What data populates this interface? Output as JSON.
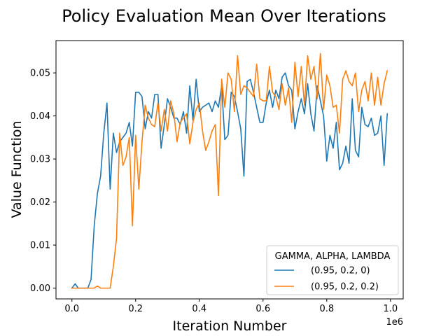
{
  "chart_data": {
    "type": "line",
    "title": "Policy Evaluation Mean Over Iterations",
    "xlabel": "Iteration Number",
    "ylabel": "Value Function",
    "x_offset_label": "1e6",
    "xlim": [
      -50000,
      1040000
    ],
    "ylim": [
      -0.0025,
      0.0575
    ],
    "x_ticks": [
      0,
      0.2,
      0.4,
      0.6,
      0.8,
      1.0
    ],
    "x_tick_labels": [
      "0.0",
      "0.2",
      "0.4",
      "0.6",
      "0.8",
      "1.0"
    ],
    "y_ticks": [
      0,
      0.01,
      0.02,
      0.03,
      0.04,
      0.05
    ],
    "y_tick_labels": [
      "0.00",
      "0.01",
      "0.02",
      "0.03",
      "0.04",
      "0.05"
    ],
    "grid": false,
    "legend": {
      "title": "GAMMA, ALPHA, LAMBDA",
      "position": "lower-right"
    },
    "x": [
      0,
      10000,
      20000,
      30000,
      40000,
      50000,
      60000,
      70000,
      80000,
      90000,
      100000,
      110000,
      120000,
      130000,
      140000,
      150000,
      160000,
      170000,
      180000,
      190000,
      200000,
      210000,
      220000,
      230000,
      240000,
      250000,
      260000,
      270000,
      280000,
      290000,
      300000,
      310000,
      320000,
      330000,
      340000,
      350000,
      360000,
      370000,
      380000,
      390000,
      400000,
      410000,
      420000,
      430000,
      440000,
      450000,
      460000,
      470000,
      480000,
      490000,
      500000,
      510000,
      520000,
      530000,
      540000,
      550000,
      560000,
      570000,
      580000,
      590000,
      600000,
      610000,
      620000,
      630000,
      640000,
      650000,
      660000,
      670000,
      680000,
      690000,
      700000,
      710000,
      720000,
      730000,
      740000,
      750000,
      760000,
      770000,
      780000,
      790000,
      800000,
      810000,
      820000,
      830000,
      840000,
      850000,
      860000,
      870000,
      880000,
      890000,
      900000,
      910000,
      920000,
      930000,
      940000,
      950000,
      960000,
      970000,
      980000,
      990000
    ],
    "series": [
      {
        "name": "(0.95, 0.2, 0)",
        "color": "#1f77b4",
        "values": [
          0,
          0.001,
          0,
          0,
          0,
          0,
          0.002,
          0.0145,
          0.022,
          0.026,
          0.036,
          0.043,
          0.023,
          0.036,
          0.0315,
          0.034,
          0.035,
          0.036,
          0.0385,
          0.033,
          0.0455,
          0.0455,
          0.0445,
          0.037,
          0.041,
          0.0395,
          0.045,
          0.045,
          0.0325,
          0.038,
          0.044,
          0.042,
          0.0395,
          0.0395,
          0.038,
          0.041,
          0.036,
          0.047,
          0.039,
          0.0485,
          0.041,
          0.042,
          0.0425,
          0.043,
          0.041,
          0.0435,
          0.042,
          0.047,
          0.0345,
          0.0355,
          0.0455,
          0.0445,
          0.041,
          0.037,
          0.026,
          0.048,
          0.0485,
          0.0455,
          0.042,
          0.0385,
          0.0385,
          0.043,
          0.046,
          0.042,
          0.046,
          0.044,
          0.049,
          0.05,
          0.047,
          0.046,
          0.037,
          0.041,
          0.044,
          0.0405,
          0.0475,
          0.0405,
          0.0365,
          0.047,
          0.0435,
          0.04,
          0.0295,
          0.0355,
          0.0325,
          0.0385,
          0.0275,
          0.029,
          0.033,
          0.029,
          0.044,
          0.032,
          0.0305,
          0.042,
          0.038,
          0.0375,
          0.0395,
          0.0355,
          0.036,
          0.04,
          0.0285,
          0.0405
        ]
      },
      {
        "name": "(0.95, 0.2, 0.2)",
        "color": "#ff7f0e",
        "values": [
          0,
          0,
          0,
          0,
          0,
          0,
          0,
          0,
          0.0005,
          0,
          0,
          0,
          0,
          0.005,
          0.0115,
          0.036,
          0.0285,
          0.0305,
          0.035,
          0.0145,
          0.0355,
          0.023,
          0.034,
          0.0425,
          0.0395,
          0.038,
          0.0375,
          0.043,
          0.0365,
          0.0415,
          0.0365,
          0.0435,
          0.0405,
          0.034,
          0.0385,
          0.0395,
          0.0405,
          0.0335,
          0.0385,
          0.0415,
          0.043,
          0.0365,
          0.032,
          0.034,
          0.0365,
          0.038,
          0.0215,
          0.0485,
          0.042,
          0.05,
          0.0485,
          0.041,
          0.054,
          0.045,
          0.047,
          0.0465,
          0.0455,
          0.0445,
          0.052,
          0.044,
          0.0435,
          0.0435,
          0.0515,
          0.0455,
          0.0445,
          0.0415,
          0.0475,
          0.0425,
          0.0465,
          0.0385,
          0.0525,
          0.0445,
          0.0515,
          0.0425,
          0.054,
          0.0485,
          0.0515,
          0.044,
          0.0545,
          0.0415,
          0.0495,
          0.047,
          0.042,
          0.0425,
          0.036,
          0.0485,
          0.0505,
          0.048,
          0.047,
          0.05,
          0.041,
          0.046,
          0.048,
          0.0435,
          0.05,
          0.0425,
          0.049,
          0.0425,
          0.0475,
          0.0505
        ]
      }
    ]
  }
}
